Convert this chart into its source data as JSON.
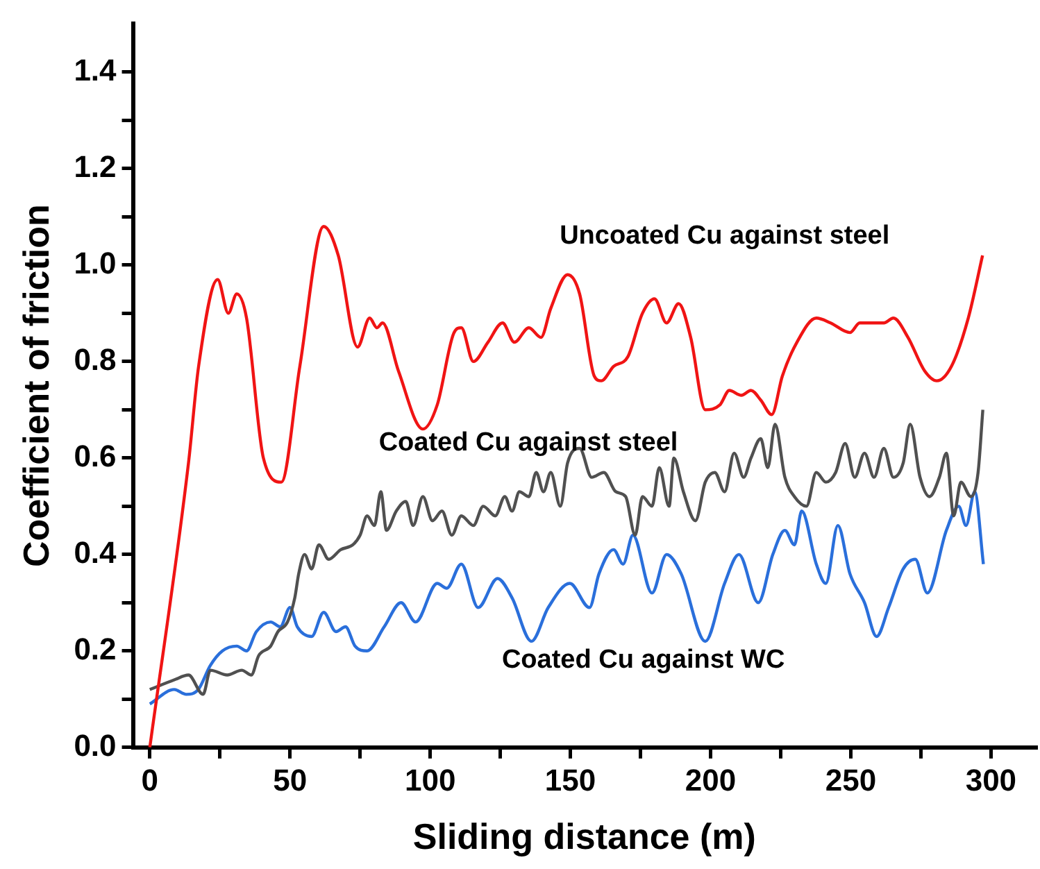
{
  "chart_data": {
    "type": "line",
    "xlabel": "Sliding distance (m)",
    "ylabel": "Coefficient of friction",
    "xlim": [
      -6,
      316
    ],
    "ylim": [
      0,
      1.5
    ],
    "xticks": [
      0,
      {
        "value": 25,
        "label": null
      },
      50,
      {
        "value": 75,
        "label": null
      },
      100,
      {
        "value": 125,
        "label": null
      },
      150,
      {
        "value": 175,
        "label": null
      },
      200,
      {
        "value": 225,
        "label": null
      },
      250,
      {
        "value": 275,
        "label": null
      },
      300
    ],
    "yticks": [
      {
        "value": 0,
        "label": "0.0"
      },
      {
        "value": 0.1,
        "label": null
      },
      {
        "value": 0.2,
        "label": "0.2"
      },
      {
        "value": 0.3,
        "label": null
      },
      {
        "value": 0.4,
        "label": "0.4"
      },
      {
        "value": 0.5,
        "label": null
      },
      {
        "value": 0.6,
        "label": "0.6"
      },
      {
        "value": 0.7,
        "label": null
      },
      {
        "value": 0.8,
        "label": "0.8"
      },
      {
        "value": 0.9,
        "label": null
      },
      {
        "value": 1.0,
        "label": "1.0"
      },
      {
        "value": 1.1,
        "label": null
      },
      {
        "value": 1.2,
        "label": "1.2"
      },
      {
        "value": 1.3,
        "label": null
      },
      {
        "value": 1.4,
        "label": "1.4"
      }
    ],
    "grid": false,
    "marker": "none",
    "line_style": "solid",
    "series": [
      {
        "name": "Uncoated Cu against steel",
        "color": "#f01414",
        "x": [
          0,
          13.8,
          17.4,
          24.2,
          28,
          31,
          34.5,
          40.5,
          46.9,
          53.5,
          62,
          67.2,
          74.1,
          78.4,
          81,
          83,
          88.7,
          97.4,
          102.5,
          108.5,
          111.1,
          115.4,
          120.6,
          125.8,
          130,
          135.2,
          139.5,
          143,
          149,
          153.3,
          158.5,
          161,
          165.4,
          170.5,
          175.7,
          180,
          184.3,
          188.6,
          192.9,
          198.1,
          203.3,
          206.7,
          211,
          214.4,
          217.9,
          221.8,
          225.6,
          230.8,
          237.7,
          242.8,
          249.7,
          253.2,
          261.8,
          265.2,
          270.4,
          276.4,
          280.7,
          285.9,
          291.9,
          297
        ],
        "values": [
          0,
          0.59,
          0.79,
          0.97,
          0.9,
          0.94,
          0.89,
          0.6,
          0.55,
          0.79,
          1.08,
          1.02,
          0.83,
          0.89,
          0.87,
          0.88,
          0.78,
          0.66,
          0.71,
          0.86,
          0.87,
          0.8,
          0.84,
          0.88,
          0.84,
          0.87,
          0.85,
          0.91,
          0.98,
          0.94,
          0.77,
          0.76,
          0.79,
          0.81,
          0.9,
          0.93,
          0.88,
          0.92,
          0.85,
          0.7,
          0.71,
          0.74,
          0.73,
          0.74,
          0.72,
          0.69,
          0.77,
          0.84,
          0.89,
          0.88,
          0.86,
          0.88,
          0.88,
          0.89,
          0.85,
          0.78,
          0.76,
          0.79,
          0.89,
          1.02
        ]
      },
      {
        "name": "Coated Cu against steel",
        "color": "#505050",
        "x": [
          0,
          8.7,
          13.8,
          19,
          21.6,
          27.6,
          32.8,
          36.2,
          38.8,
          43.1,
          45.7,
          49.1,
          51.7,
          53.1,
          55.2,
          57.7,
          60.3,
          63.8,
          68.1,
          72.4,
          75,
          77.5,
          80.1,
          82.4,
          84.4,
          87.9,
          91.3,
          93.9,
          97.4,
          100.8,
          104.2,
          107.7,
          111.1,
          115.4,
          118.9,
          123.2,
          126.6,
          129.2,
          131.8,
          135.2,
          137.8,
          140.4,
          143,
          146.4,
          149,
          153.3,
          157.6,
          161.9,
          166.2,
          169.7,
          173.1,
          175.7,
          179.1,
          181.7,
          185.2,
          186.9,
          190.3,
          194.6,
          198.1,
          201.5,
          205,
          208.4,
          211.8,
          214.4,
          217.9,
          220.4,
          223,
          226.5,
          229.9,
          234.2,
          237.7,
          241.1,
          244.6,
          248,
          251.4,
          254.9,
          258.3,
          261.8,
          265.2,
          268.7,
          271.2,
          274.7,
          278.1,
          281.6,
          284.1,
          286.7,
          289.3,
          292.8,
          295.4,
          297.1
        ],
        "values": [
          0.12,
          0.14,
          0.15,
          0.11,
          0.16,
          0.15,
          0.16,
          0.15,
          0.19,
          0.21,
          0.24,
          0.26,
          0.31,
          0.36,
          0.4,
          0.37,
          0.42,
          0.39,
          0.41,
          0.42,
          0.44,
          0.48,
          0.46,
          0.53,
          0.45,
          0.49,
          0.51,
          0.46,
          0.52,
          0.47,
          0.49,
          0.44,
          0.48,
          0.46,
          0.5,
          0.48,
          0.52,
          0.49,
          0.53,
          0.52,
          0.57,
          0.53,
          0.57,
          0.5,
          0.59,
          0.62,
          0.56,
          0.57,
          0.53,
          0.52,
          0.44,
          0.52,
          0.5,
          0.58,
          0.5,
          0.6,
          0.53,
          0.47,
          0.55,
          0.57,
          0.53,
          0.61,
          0.56,
          0.6,
          0.64,
          0.58,
          0.67,
          0.56,
          0.52,
          0.5,
          0.57,
          0.55,
          0.57,
          0.63,
          0.56,
          0.61,
          0.56,
          0.62,
          0.56,
          0.59,
          0.67,
          0.56,
          0.52,
          0.56,
          0.61,
          0.48,
          0.55,
          0.52,
          0.57,
          0.7
        ]
      },
      {
        "name": "Coated Cu against WC",
        "color": "#2a6fdb",
        "x": [
          0,
          8.7,
          13,
          17.3,
          21.6,
          25.9,
          31,
          34.5,
          38,
          43.1,
          46.5,
          50,
          52.6,
          57.7,
          62,
          66.4,
          69.8,
          73.2,
          77.5,
          83.6,
          89.6,
          94.8,
          102.5,
          105.9,
          111.1,
          117.1,
          124,
          129.2,
          136.1,
          142.1,
          149.8,
          156.8,
          160.2,
          165.4,
          168.8,
          172.3,
          179.1,
          184.3,
          189.5,
          198.1,
          205,
          210.1,
          217,
          222.2,
          226.5,
          229.9,
          232.5,
          237.7,
          241.1,
          245.4,
          249.7,
          254.9,
          259.2,
          263.5,
          268.7,
          273,
          277.3,
          284.1,
          288.5,
          291.1,
          294.2,
          297.3
        ],
        "values": [
          0.09,
          0.12,
          0.11,
          0.12,
          0.17,
          0.2,
          0.21,
          0.2,
          0.24,
          0.26,
          0.25,
          0.29,
          0.25,
          0.23,
          0.28,
          0.24,
          0.25,
          0.21,
          0.2,
          0.25,
          0.3,
          0.26,
          0.34,
          0.33,
          0.38,
          0.29,
          0.35,
          0.31,
          0.22,
          0.29,
          0.34,
          0.29,
          0.36,
          0.41,
          0.38,
          0.44,
          0.32,
          0.4,
          0.36,
          0.22,
          0.34,
          0.4,
          0.3,
          0.4,
          0.45,
          0.42,
          0.49,
          0.38,
          0.34,
          0.46,
          0.36,
          0.3,
          0.23,
          0.29,
          0.37,
          0.39,
          0.32,
          0.45,
          0.5,
          0.46,
          0.53,
          0.38
        ]
      }
    ]
  }
}
